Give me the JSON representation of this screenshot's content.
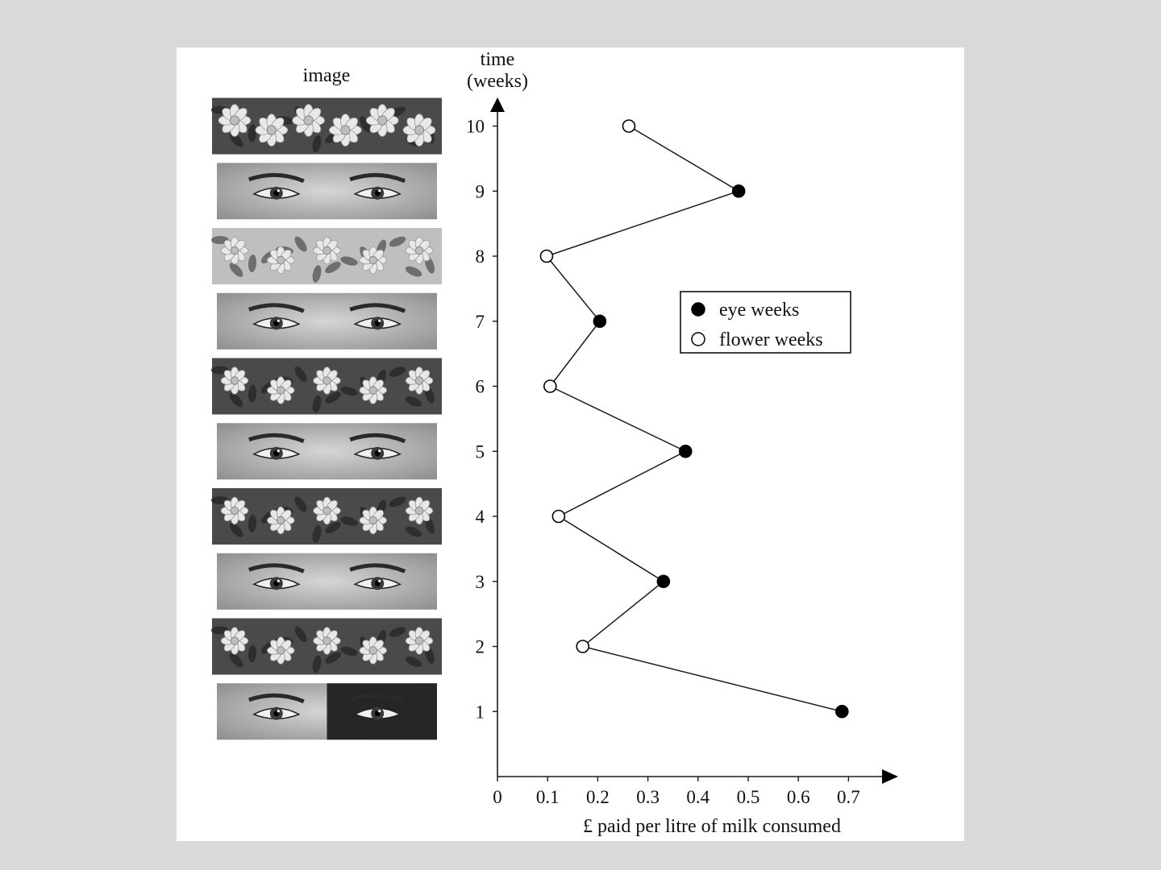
{
  "chart_data": {
    "type": "line",
    "orientation": "horizontal-values",
    "image_column_heading": "image",
    "ylabel_line1": "time",
    "ylabel_line2": "(weeks)",
    "xlabel": "£ paid per litre of milk consumed",
    "xlim": [
      0,
      0.7
    ],
    "ylim": [
      0,
      10
    ],
    "x_ticks": [
      "0",
      "0.1",
      "0.2",
      "0.3",
      "0.4",
      "0.5",
      "0.6",
      "0.7"
    ],
    "y_ticks": [
      "1",
      "2",
      "3",
      "4",
      "5",
      "6",
      "7",
      "8",
      "9",
      "10"
    ],
    "points": [
      {
        "week": 1,
        "value": 0.687,
        "type": "eye"
      },
      {
        "week": 2,
        "value": 0.17,
        "type": "flower"
      },
      {
        "week": 3,
        "value": 0.331,
        "type": "eye"
      },
      {
        "week": 4,
        "value": 0.122,
        "type": "flower"
      },
      {
        "week": 5,
        "value": 0.375,
        "type": "eye"
      },
      {
        "week": 6,
        "value": 0.105,
        "type": "flower"
      },
      {
        "week": 7,
        "value": 0.204,
        "type": "eye"
      },
      {
        "week": 8,
        "value": 0.098,
        "type": "flower"
      },
      {
        "week": 9,
        "value": 0.481,
        "type": "eye"
      },
      {
        "week": 10,
        "value": 0.262,
        "type": "flower"
      }
    ],
    "legend": [
      {
        "key": "eye",
        "label": "eye weeks",
        "marker": "filled-circle"
      },
      {
        "key": "flower",
        "label": "flower weeks",
        "marker": "open-circle"
      }
    ],
    "legend_position": "right-middle",
    "images": [
      {
        "week": 10,
        "subject": "flowers",
        "icon": "rose-flowers-image"
      },
      {
        "week": 9,
        "subject": "eyes",
        "icon": "eyes-image"
      },
      {
        "week": 8,
        "subject": "flowers",
        "icon": "rose-bud-flowers-image"
      },
      {
        "week": 7,
        "subject": "eyes",
        "icon": "eyes-image"
      },
      {
        "week": 6,
        "subject": "flowers",
        "icon": "daisy-flowers-image"
      },
      {
        "week": 5,
        "subject": "eyes",
        "icon": "eyes-image"
      },
      {
        "week": 4,
        "subject": "flowers",
        "icon": "lily-flowers-image"
      },
      {
        "week": 3,
        "subject": "eyes",
        "icon": "eyes-image"
      },
      {
        "week": 2,
        "subject": "flowers",
        "icon": "zinnia-flowers-image"
      },
      {
        "week": 1,
        "subject": "eyes",
        "icon": "eyes-image"
      }
    ],
    "grid": false,
    "colors": {
      "marker": "#000000",
      "line": "#1a1a1a",
      "background": "#ffffff",
      "page": "#d9d9d9"
    }
  }
}
